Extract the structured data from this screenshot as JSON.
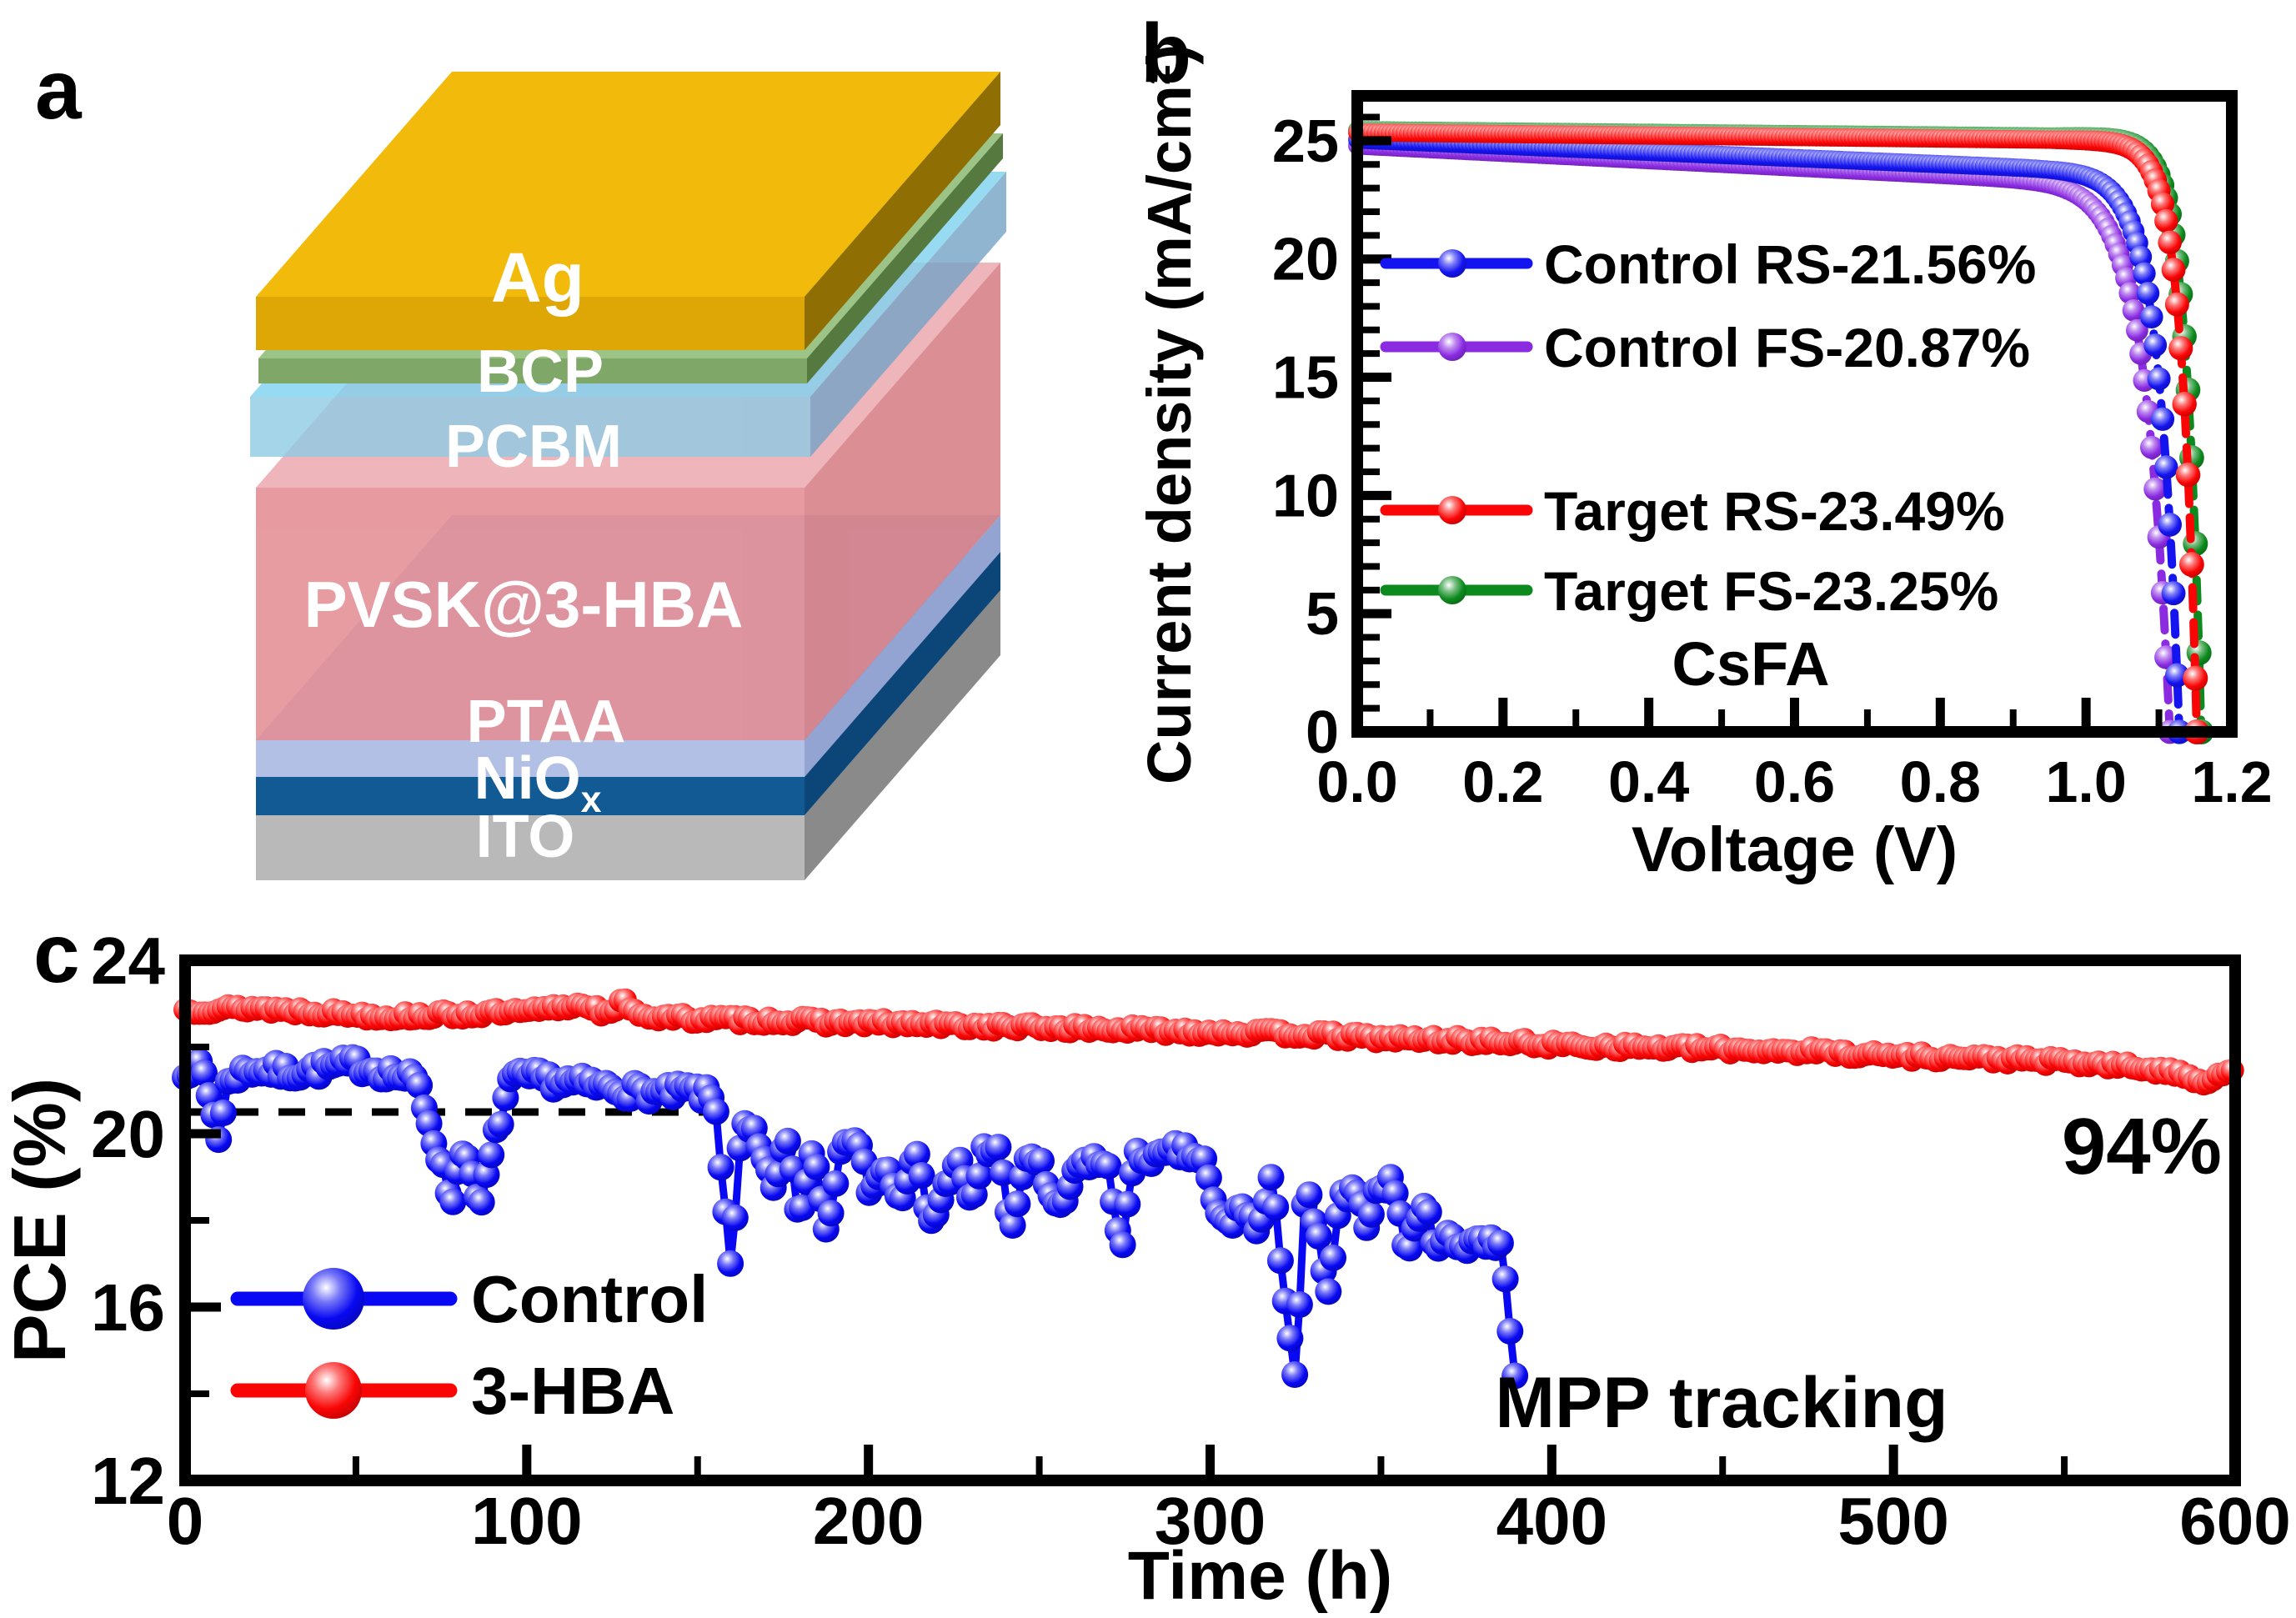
{
  "panels": {
    "a": "a",
    "b": "b",
    "c": "c"
  },
  "panel_a": {
    "description": "perovskite solar cell device stack",
    "label_color": "#ffffff",
    "layers": [
      {
        "id": "ag",
        "label": "Ag",
        "front": "#DFA705",
        "top": "#F2BB0C",
        "side": "#8F6E03",
        "opacity": 1
      },
      {
        "id": "bcp",
        "label": "BCP",
        "front": "#7FA768",
        "top": "#9DC487",
        "side": "#55793F",
        "opacity": 1
      },
      {
        "id": "pcbm",
        "label": "PCBM",
        "front": "#8FCBE4",
        "top": "#7ED3F0",
        "side": "#74A3C6",
        "opacity": 0.8
      },
      {
        "id": "pvsk",
        "label": "PVSK@3-HBA",
        "front": "#E2868C",
        "top": "#EBA6AB",
        "side": "#D4767C",
        "opacity": 0.82
      },
      {
        "id": "ptaa",
        "label": "PTAA",
        "front": "#B3C0E6",
        "top": "#C6D1F0",
        "side": "#93A3D2",
        "opacity": 1
      },
      {
        "id": "niox",
        "label": "NiO",
        "label_sub": "x",
        "front": "#125A94",
        "top": "#1C6CAD",
        "side": "#0C4678",
        "opacity": 1
      },
      {
        "id": "ito",
        "label": "ITO",
        "front": "#B9B9B9",
        "top": "#D0D0D0",
        "side": "#8A8A8A",
        "opacity": 1
      }
    ]
  },
  "chart_data": [
    {
      "panel": "b",
      "type": "line",
      "title": "",
      "xlabel": "Voltage (V)",
      "ylabel": "Current density (mA/cm²)",
      "xlim": [
        0,
        1.2
      ],
      "ylim": [
        0,
        26.9
      ],
      "xticks": [
        "0.0",
        "0.2",
        "0.4",
        "0.6",
        "0.8",
        "1.0",
        "1.2"
      ],
      "yticks": [
        0,
        5,
        10,
        15,
        20,
        25
      ],
      "x_minor_step": 0.1,
      "y_minor_step": 1,
      "grid": false,
      "annotation": "CsFA",
      "legend_position": "inside upper-left and middle-left",
      "series": [
        {
          "name": "Control RS-21.56%",
          "color": "#1414F0",
          "jsc_mA_cm2": 25.05,
          "voc_V": 1.128,
          "pce_percent": 21.56,
          "slope": 1.3,
          "knee_w": 0.028,
          "zorder": 2
        },
        {
          "name": "Control FS-20.87%",
          "color": "#8A2BE2",
          "jsc_mA_cm2": 24.8,
          "voc_V": 1.115,
          "pce_percent": 20.87,
          "slope": 1.55,
          "knee_w": 0.034,
          "zorder": 1
        },
        {
          "name": "Target  RS-23.49%",
          "color": "#FA0505",
          "jsc_mA_cm2": 25.35,
          "voc_V": 1.152,
          "pce_percent": 23.49,
          "slope": 0.32,
          "knee_w": 0.021,
          "zorder": 4
        },
        {
          "name": "Target  FS-23.25%",
          "color": "#0D8A1E",
          "jsc_mA_cm2": 25.45,
          "voc_V": 1.158,
          "pce_percent": 23.25,
          "slope": 0.28,
          "knee_w": 0.021,
          "zorder": 3
        }
      ]
    },
    {
      "panel": "c",
      "type": "scatter",
      "title": "",
      "xlabel": "Time (h)",
      "ylabel": "PCE (%)",
      "xlim": [
        0,
        608
      ],
      "ylim": [
        12,
        24
      ],
      "xticks": [
        0,
        100,
        200,
        300,
        400,
        500,
        600
      ],
      "yticks": [
        12,
        16,
        20,
        24
      ],
      "x_minor_step": 50,
      "y_minor_step": 2,
      "grid": false,
      "dashed_line": {
        "pce": 20.5,
        "x_start": 0,
        "x_end": 158
      },
      "annotations": [
        {
          "id": "retention",
          "text": "94%"
        },
        {
          "id": "mode",
          "text": "MPP tracking"
        }
      ],
      "series": [
        {
          "name": "Control",
          "color": "#0808F2",
          "noise": 0.2,
          "marker_r": 16,
          "trend": [
            [
              0,
              21.5
            ],
            [
              5,
              21.6
            ],
            [
              10,
              19.9
            ],
            [
              13,
              21.3
            ],
            [
              20,
              21.5
            ],
            [
              30,
              21.4
            ],
            [
              40,
              21.5
            ],
            [
              50,
              21.6
            ],
            [
              60,
              21.4
            ],
            [
              68,
              21.2
            ],
            [
              74,
              19.6
            ],
            [
              78,
              18.4
            ],
            [
              82,
              19.9
            ],
            [
              86,
              18.1
            ],
            [
              90,
              19.6
            ],
            [
              95,
              21.2
            ],
            [
              100,
              21.3
            ],
            [
              110,
              21.2
            ],
            [
              120,
              21.1
            ],
            [
              130,
              21.0
            ],
            [
              140,
              20.9
            ],
            [
              148,
              21.0
            ],
            [
              155,
              20.8
            ],
            [
              160,
              16.8
            ],
            [
              163,
              20.2
            ],
            [
              167,
              19.9
            ],
            [
              172,
              18.7
            ],
            [
              176,
              19.9
            ],
            [
              180,
              18.0
            ],
            [
              184,
              19.8
            ],
            [
              188,
              17.6
            ],
            [
              192,
              19.9
            ],
            [
              196,
              20.0
            ],
            [
              200,
              18.8
            ],
            [
              205,
              19.2
            ],
            [
              210,
              18.4
            ],
            [
              214,
              19.6
            ],
            [
              218,
              17.9
            ],
            [
              222,
              18.6
            ],
            [
              226,
              19.5
            ],
            [
              230,
              18.3
            ],
            [
              234,
              19.6
            ],
            [
              238,
              19.7
            ],
            [
              242,
              17.6
            ],
            [
              246,
              19.5
            ],
            [
              250,
              19.4
            ],
            [
              254,
              18.2
            ],
            [
              258,
              18.5
            ],
            [
              262,
              19.3
            ],
            [
              266,
              19.4
            ],
            [
              270,
              19.2
            ],
            [
              274,
              17.4
            ],
            [
              278,
              19.4
            ],
            [
              282,
              19.5
            ],
            [
              286,
              19.4
            ],
            [
              290,
              19.6
            ],
            [
              294,
              19.5
            ],
            [
              298,
              19.4
            ],
            [
              302,
              18.1
            ],
            [
              306,
              17.9
            ],
            [
              310,
              18.4
            ],
            [
              314,
              17.7
            ],
            [
              318,
              18.9
            ],
            [
              322,
              16.3
            ],
            [
              325,
              14.3
            ],
            [
              328,
              18.8
            ],
            [
              332,
              17.4
            ],
            [
              335,
              16.2
            ],
            [
              338,
              18.5
            ],
            [
              342,
              18.6
            ],
            [
              346,
              18.0
            ],
            [
              350,
              18.9
            ],
            [
              354,
              18.8
            ],
            [
              358,
              17.1
            ],
            [
              362,
              18.5
            ],
            [
              366,
              17.5
            ],
            [
              370,
              17.6
            ],
            [
              374,
              17.4
            ],
            [
              378,
              17.6
            ],
            [
              382,
              17.5
            ],
            [
              385,
              17.4
            ],
            [
              388,
              15.5
            ],
            [
              390,
              13.9
            ]
          ]
        },
        {
          "name": "3-HBA",
          "color": "#FA0505",
          "noise": 0.09,
          "marker_r": 14,
          "trend": [
            [
              0,
              22.85
            ],
            [
              20,
              22.9
            ],
            [
              40,
              22.8
            ],
            [
              60,
              22.7
            ],
            [
              80,
              22.75
            ],
            [
              100,
              22.8
            ],
            [
              118,
              23.0
            ],
            [
              124,
              22.7
            ],
            [
              128,
              23.05
            ],
            [
              135,
              22.7
            ],
            [
              150,
              22.65
            ],
            [
              175,
              22.6
            ],
            [
              200,
              22.55
            ],
            [
              225,
              22.5
            ],
            [
              250,
              22.45
            ],
            [
              275,
              22.4
            ],
            [
              300,
              22.35
            ],
            [
              325,
              22.3
            ],
            [
              350,
              22.2
            ],
            [
              375,
              22.15
            ],
            [
              400,
              22.05
            ],
            [
              425,
              22.0
            ],
            [
              450,
              21.95
            ],
            [
              475,
              21.9
            ],
            [
              500,
              21.8
            ],
            [
              520,
              21.75
            ],
            [
              540,
              21.7
            ],
            [
              560,
              21.6
            ],
            [
              575,
              21.5
            ],
            [
              585,
              21.35
            ],
            [
              592,
              21.2
            ],
            [
              597,
              21.45
            ],
            [
              600,
              21.4
            ]
          ]
        }
      ]
    }
  ]
}
